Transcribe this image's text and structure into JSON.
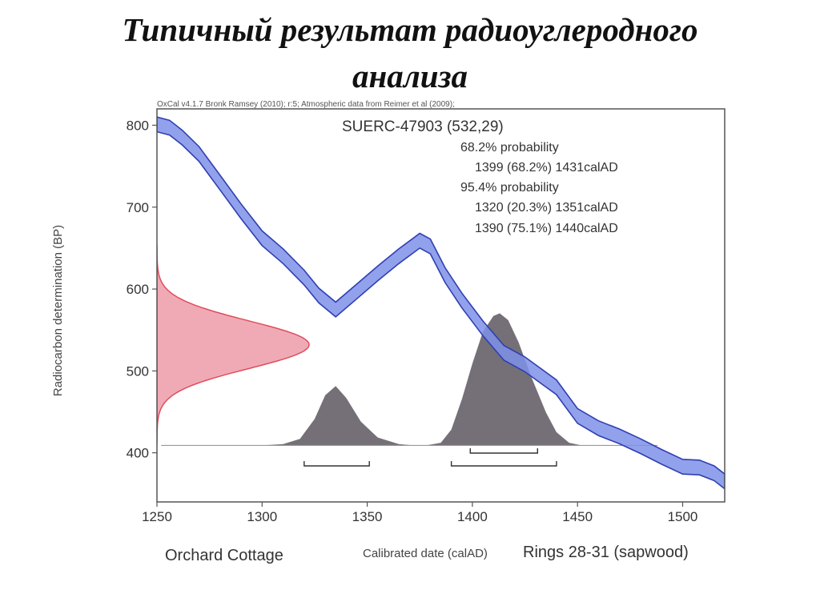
{
  "slide": {
    "title_line1": "Типичный  результат  радиоуглеродного",
    "title_line2": "анализа"
  },
  "chart_data": {
    "type": "area",
    "header": "OxCal v4.1.7 Bronk Ramsey (2010); r:5; Atmospheric data from Reimer et al (2009);",
    "sample": "SUERC-47903 (532,29)",
    "stats": [
      "68.2% probability",
      "1399 (68.2%) 1431calAD",
      "95.4% probability",
      "1320 (20.3%) 1351calAD",
      "1390 (75.1%) 1440calAD"
    ],
    "xlabel": "Calibrated date (calAD)",
    "ylabel": "Radiocarbon determination (BP)",
    "left_caption": "Orchard Cottage",
    "right_caption": "Rings 28-31 (sapwood)",
    "xlim": [
      1250,
      1520
    ],
    "ylim": [
      340,
      820
    ],
    "xticks": [
      1250,
      1300,
      1350,
      1400,
      1450,
      1500
    ],
    "yticks": [
      400,
      500,
      600,
      700,
      800
    ],
    "calibration_curve": {
      "x": [
        1250,
        1256,
        1262,
        1270,
        1280,
        1290,
        1300,
        1310,
        1320,
        1327,
        1335,
        1345,
        1355,
        1365,
        1375,
        1380,
        1387,
        1395,
        1405,
        1415,
        1425,
        1440,
        1450,
        1460,
        1470,
        1480,
        1490,
        1500,
        1508,
        1515,
        1520
      ],
      "y": [
        801,
        797,
        785,
        765,
        730,
        695,
        662,
        640,
        614,
        592,
        575,
        597,
        619,
        640,
        659,
        652,
        617,
        586,
        552,
        522,
        508,
        480,
        445,
        430,
        420,
        408,
        395,
        383,
        382,
        375,
        365
      ],
      "half_width": 9
    },
    "radiocarbon_distribution": {
      "mean": 532,
      "sigma": 29,
      "color": "#f0aab6",
      "edge_color": "#e04d5b"
    },
    "calibrated_distribution": {
      "x": [
        1250,
        1300,
        1310,
        1318,
        1325,
        1330,
        1335,
        1340,
        1347,
        1355,
        1365,
        1372,
        1378,
        1385,
        1390,
        1395,
        1400,
        1405,
        1410,
        1413,
        1417,
        1422,
        1428,
        1435,
        1440,
        1446,
        1452,
        1460,
        1520
      ],
      "rel": [
        0,
        0,
        0.01,
        0.05,
        0.2,
        0.38,
        0.45,
        0.36,
        0.18,
        0.06,
        0.01,
        0,
        0,
        0.02,
        0.12,
        0.35,
        0.62,
        0.86,
        0.98,
        1.0,
        0.95,
        0.78,
        0.52,
        0.25,
        0.1,
        0.02,
        0,
        0,
        0
      ],
      "color": "#6e6870"
    },
    "ranges_68": [
      [
        1399,
        1431
      ]
    ],
    "ranges_95": [
      [
        1320,
        1351
      ],
      [
        1390,
        1440
      ]
    ],
    "colors": {
      "curve_fill": "#7f90e8",
      "curve_edge": "#2e3fb2",
      "frame": "#555555"
    }
  }
}
